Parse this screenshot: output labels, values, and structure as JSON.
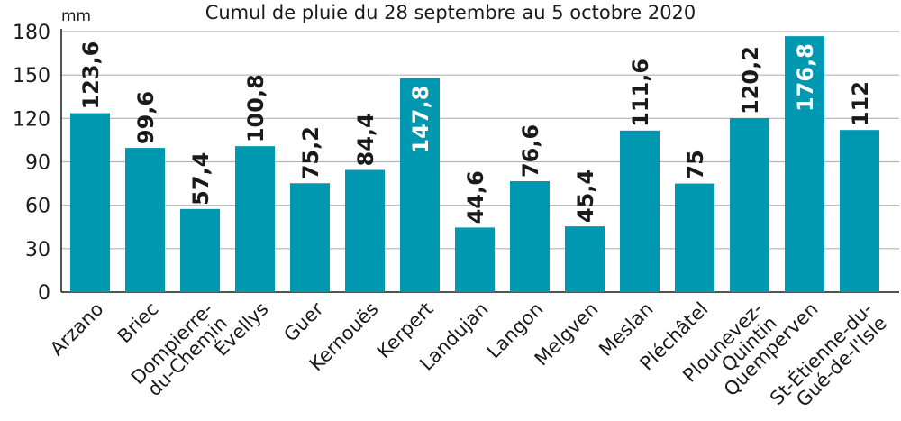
{
  "chart_data": {
    "type": "bar",
    "title": "Cumul de pluie du 28 septembre au 5 octobre 2020",
    "unit_label": "mm",
    "ylim": [
      0,
      180
    ],
    "yticks": [
      "0",
      "30",
      "60",
      "90",
      "120",
      "150",
      "180"
    ],
    "grid": true,
    "colors": {
      "bar": "#0097b1",
      "highlight_label": "#ffffff",
      "label": "#1a1a1a",
      "grid": "#b3b3b3"
    },
    "categories": [
      [
        "Arzano"
      ],
      [
        "Briec"
      ],
      [
        "Dompierre-",
        "du-Chemin"
      ],
      [
        "Évellys"
      ],
      [
        "Guer"
      ],
      [
        "Kernouës"
      ],
      [
        "Kerpert"
      ],
      [
        "Landujan"
      ],
      [
        "Langon"
      ],
      [
        "Melgven"
      ],
      [
        "Meslan"
      ],
      [
        "Pléchâtel"
      ],
      [
        "Plounevez-",
        "Quintin"
      ],
      [
        "Quemperven"
      ],
      [
        "St-Étienne-du-",
        "Gué-de-l'Isle"
      ]
    ],
    "values": [
      123.6,
      99.6,
      57.4,
      100.8,
      75.2,
      84.4,
      147.8,
      44.6,
      76.6,
      45.4,
      111.6,
      75,
      120.2,
      176.8,
      112
    ],
    "value_labels": [
      "123,6",
      "99,6",
      "57,4",
      "100,8",
      "75,2",
      "84,4",
      "147,8",
      "44,6",
      "76,6",
      "45,4",
      "111,6",
      "75",
      "120,2",
      "176,8",
      "112"
    ],
    "label_inside": [
      false,
      false,
      false,
      false,
      false,
      false,
      true,
      false,
      false,
      false,
      false,
      false,
      false,
      true,
      false
    ]
  }
}
